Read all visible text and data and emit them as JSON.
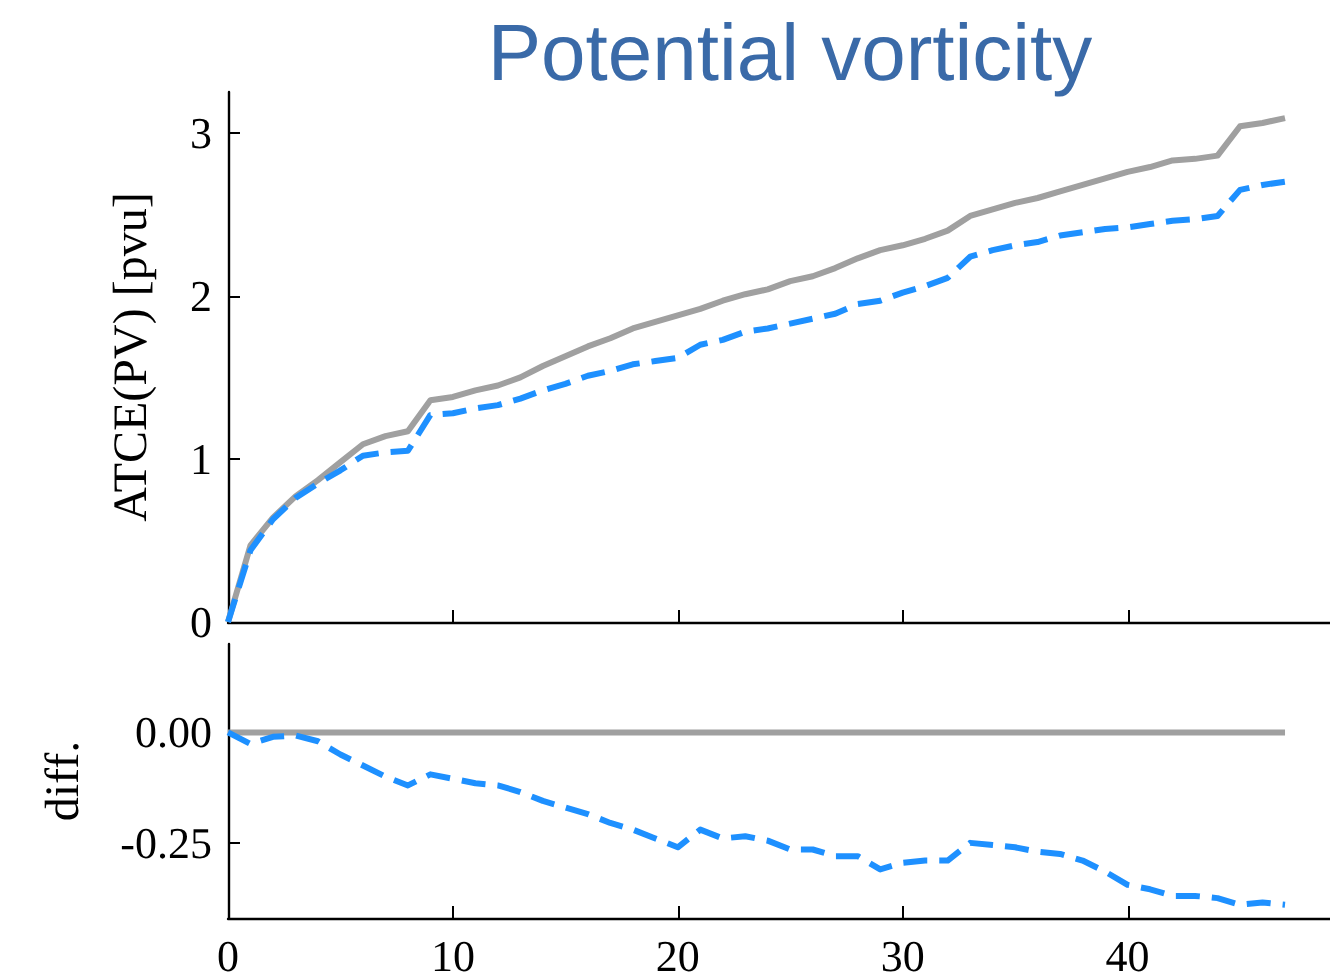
{
  "chart_data": [
    {
      "type": "line",
      "title": "Potential vorticity",
      "ylabel": "ATCE(PV) [pvu]",
      "x": [
        0,
        1,
        2,
        3,
        4,
        5,
        6,
        7,
        8,
        9,
        10,
        11,
        12,
        13,
        14,
        15,
        16,
        17,
        18,
        19,
        20,
        21,
        22,
        23,
        24,
        25,
        26,
        27,
        28,
        29,
        30,
        31,
        32,
        33,
        34,
        35,
        36,
        37,
        38,
        39,
        40,
        41,
        42,
        43,
        44,
        45,
        46,
        47
      ],
      "xlim": [
        0,
        49
      ],
      "xticks": [
        0,
        10,
        20,
        30,
        40
      ],
      "ylim": [
        0,
        3.25
      ],
      "yticks": [
        0,
        1,
        2,
        3
      ],
      "tick_labels": "y",
      "marker": "none",
      "grid": false,
      "series": [
        {
          "color": "#a0a0a0",
          "line_style": "solid",
          "values": [
            0,
            0.47,
            0.64,
            0.77,
            0.87,
            0.98,
            1.09,
            1.14,
            1.17,
            1.36,
            1.38,
            1.42,
            1.45,
            1.5,
            1.57,
            1.63,
            1.69,
            1.74,
            1.8,
            1.84,
            1.88,
            1.92,
            1.97,
            2.01,
            2.04,
            2.09,
            2.12,
            2.17,
            2.23,
            2.28,
            2.31,
            2.35,
            2.4,
            2.49,
            2.53,
            2.57,
            2.6,
            2.64,
            2.68,
            2.72,
            2.76,
            2.79,
            2.83,
            2.84,
            2.86,
            3.04,
            3.06,
            3.09
          ]
        },
        {
          "color": "#1e90ff",
          "line_style": "dashed",
          "values": [
            0,
            0.44,
            0.63,
            0.76,
            0.85,
            0.93,
            1.02,
            1.04,
            1.05,
            1.27,
            1.28,
            1.31,
            1.33,
            1.37,
            1.42,
            1.46,
            1.51,
            1.54,
            1.58,
            1.6,
            1.62,
            1.7,
            1.73,
            1.78,
            1.8,
            1.83,
            1.86,
            1.89,
            1.95,
            1.97,
            2.02,
            2.06,
            2.11,
            2.24,
            2.28,
            2.31,
            2.33,
            2.37,
            2.39,
            2.41,
            2.42,
            2.44,
            2.46,
            2.47,
            2.49,
            2.65,
            2.68,
            2.7
          ]
        }
      ]
    },
    {
      "type": "line",
      "ylabel": "diff.",
      "x": [
        0,
        1,
        2,
        3,
        4,
        5,
        6,
        7,
        8,
        9,
        10,
        11,
        12,
        13,
        14,
        15,
        16,
        17,
        18,
        19,
        20,
        21,
        22,
        23,
        24,
        25,
        26,
        27,
        28,
        29,
        30,
        31,
        32,
        33,
        34,
        35,
        36,
        37,
        38,
        39,
        40,
        41,
        42,
        43,
        44,
        45,
        46,
        47
      ],
      "xlim": [
        0,
        49
      ],
      "xticks": [
        0,
        10,
        20,
        30,
        40
      ],
      "ylim": [
        -0.42,
        0.2
      ],
      "yticks": [
        {
          "value": 0,
          "label": "0.00"
        },
        {
          "value": -0.25,
          "label": "-0.25"
        }
      ],
      "marker": "none",
      "grid": false,
      "series": [
        {
          "color": "#a0a0a0",
          "line_style": "solid",
          "values": [
            0,
            0,
            0,
            0,
            0,
            0,
            0,
            0,
            0,
            0,
            0,
            0,
            0,
            0,
            0,
            0,
            0,
            0,
            0,
            0,
            0,
            0,
            0,
            0,
            0,
            0,
            0,
            0,
            0,
            0,
            0,
            0,
            0,
            0,
            0,
            0,
            0,
            0,
            0,
            0,
            0,
            0,
            0,
            0,
            0,
            0,
            0,
            0
          ]
        },
        {
          "color": "#1e90ff",
          "line_style": "dashed",
          "values": [
            0,
            -0.026,
            -0.01,
            -0.007,
            -0.02,
            -0.05,
            -0.075,
            -0.1,
            -0.12,
            -0.095,
            -0.105,
            -0.115,
            -0.12,
            -0.135,
            -0.155,
            -0.17,
            -0.185,
            -0.205,
            -0.22,
            -0.24,
            -0.26,
            -0.22,
            -0.24,
            -0.235,
            -0.245,
            -0.265,
            -0.265,
            -0.28,
            -0.28,
            -0.31,
            -0.295,
            -0.29,
            -0.29,
            -0.25,
            -0.255,
            -0.26,
            -0.27,
            -0.275,
            -0.29,
            -0.315,
            -0.345,
            -0.355,
            -0.37,
            -0.37,
            -0.375,
            -0.39,
            -0.385,
            -0.39
          ]
        }
      ]
    }
  ]
}
